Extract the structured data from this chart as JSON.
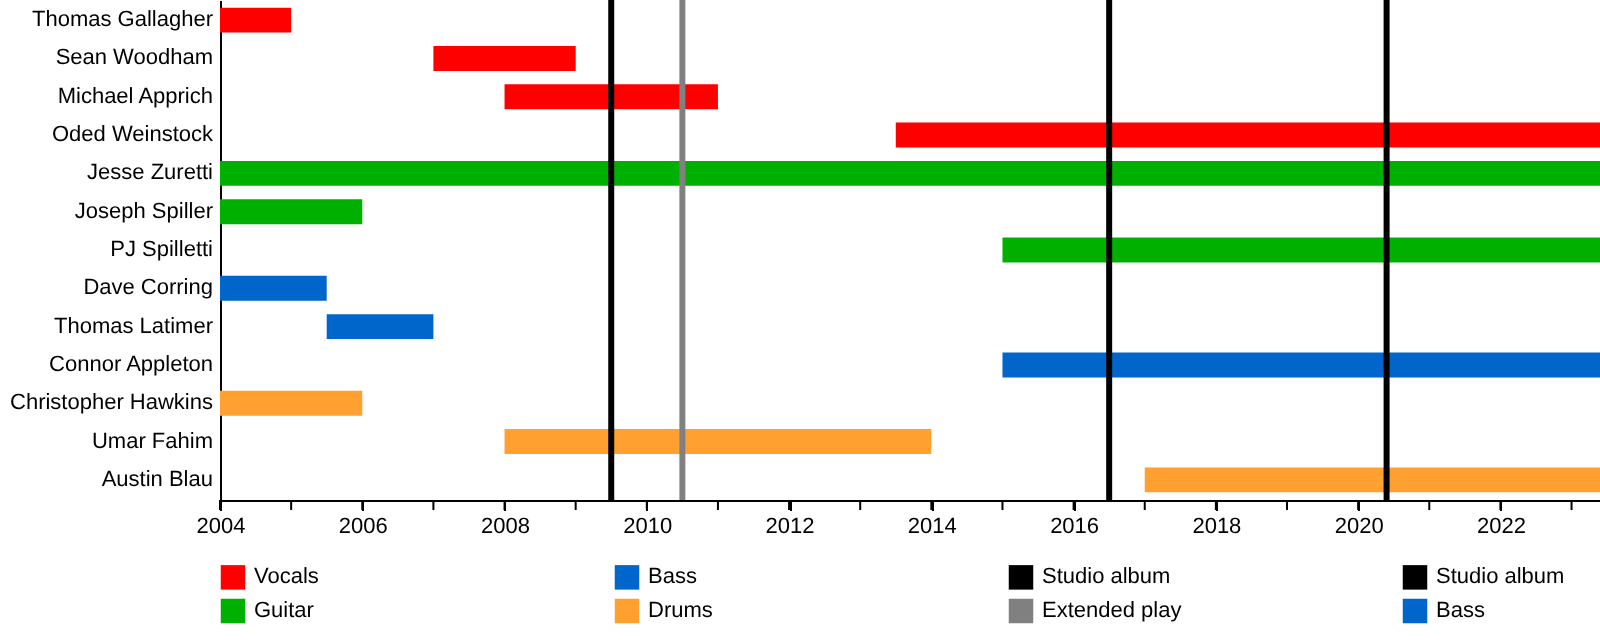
{
  "chart_data": {
    "type": "bar",
    "orientation": "horizontal",
    "categories": [
      "Thomas Gallagher",
      "Sean Woodham",
      "Michael Apprich",
      "Oded Weinstock",
      "Jesse Zuretti",
      "Joseph Spiller",
      "PJ Spilletti",
      "Dave Corring",
      "Thomas Latimer",
      "Connor Appleton",
      "Christopher Hawkins",
      "Umar Fahim",
      "Austin Blau"
    ],
    "series": [
      {
        "name": "Vocals",
        "color": "#ff0000",
        "base": [
          2004,
          2007,
          2008,
          2013.5,
          null,
          null,
          null,
          null,
          null,
          null,
          null,
          null,
          null
        ],
        "values": [
          1,
          2,
          3,
          9.9,
          null,
          null,
          null,
          null,
          null,
          null,
          null,
          null,
          null
        ]
      },
      {
        "name": "Guitar",
        "color": "#00b000",
        "base": [
          null,
          null,
          null,
          null,
          2004,
          2004,
          2015,
          null,
          null,
          null,
          null,
          null,
          null
        ],
        "values": [
          null,
          null,
          null,
          null,
          19.4,
          2,
          8.4,
          null,
          null,
          null,
          null,
          null,
          null
        ]
      },
      {
        "name": "Bass",
        "color": "#0066cc",
        "base": [
          null,
          null,
          null,
          null,
          null,
          null,
          null,
          2004,
          2005.5,
          null,
          null,
          null,
          null
        ],
        "values": [
          null,
          null,
          null,
          null,
          null,
          null,
          null,
          1.5,
          1.5,
          null,
          null,
          null,
          null
        ]
      },
      {
        "name": "Drums",
        "color": "#ffa030",
        "base": [
          null,
          null,
          null,
          null,
          null,
          null,
          null,
          null,
          null,
          null,
          2004,
          2008,
          2017
        ],
        "values": [
          null,
          null,
          null,
          null,
          null,
          null,
          null,
          null,
          null,
          null,
          2,
          6,
          6.4
        ]
      },
      {
        "name": "Bass",
        "color": "#0066cc",
        "base": [
          null,
          null,
          null,
          null,
          null,
          null,
          null,
          null,
          null,
          2015,
          null,
          null,
          null
        ],
        "values": [
          null,
          null,
          null,
          null,
          null,
          null,
          null,
          null,
          null,
          8.4,
          null,
          null,
          null
        ]
      }
    ],
    "ref_lines": [
      {
        "axis": "x",
        "value": 2009.5,
        "label": "Studio album",
        "color": "#000000"
      },
      {
        "axis": "x",
        "value": 2010.5,
        "label": "Extended play",
        "color": "#808080"
      },
      {
        "axis": "x",
        "value": 2016.5,
        "label": "Studio album",
        "color": "#000000"
      },
      {
        "axis": "x",
        "value": 2020.4,
        "color": "#000000"
      }
    ],
    "xlim": [
      2004,
      2023.4
    ],
    "xticks": [
      2004,
      {
        "value": 2005,
        "label": null
      },
      2006,
      {
        "value": 2007,
        "label": null
      },
      2008,
      {
        "value": 2009,
        "label": null
      },
      2010,
      {
        "value": 2011,
        "label": null
      },
      2012,
      {
        "value": 2013,
        "label": null
      },
      2014,
      {
        "value": 2015,
        "label": null
      },
      2016,
      {
        "value": 2017,
        "label": null
      },
      2018,
      {
        "value": 2019,
        "label": null
      },
      2020,
      {
        "value": 2021,
        "label": null
      },
      2022,
      {
        "value": 2023,
        "label": null
      }
    ],
    "legend": "bottom"
  }
}
